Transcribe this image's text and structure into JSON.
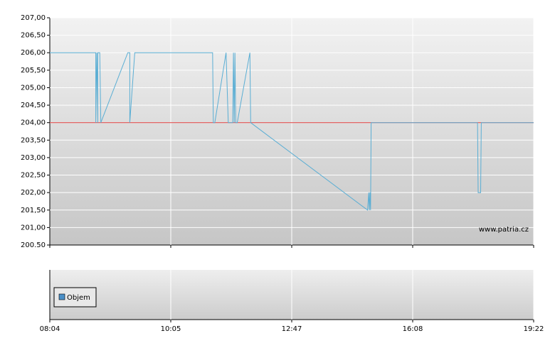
{
  "chart_data": [
    {
      "type": "line",
      "ylim": [
        200.5,
        207
      ],
      "yticks": [
        {
          "value": 200.5,
          "label": "200.50"
        },
        {
          "value": 201,
          "label": "201,00"
        },
        {
          "value": 201.5,
          "label": "201,50"
        },
        {
          "value": 202,
          "label": "202,00"
        },
        {
          "value": 202.5,
          "label": "202,50"
        },
        {
          "value": 203,
          "label": "203,00"
        },
        {
          "value": 203.5,
          "label": "203,50"
        },
        {
          "value": 204,
          "label": "204,00"
        },
        {
          "value": 204.5,
          "label": "204,50"
        },
        {
          "value": 205,
          "label": "205,00"
        },
        {
          "value": 205.5,
          "label": "205,50"
        },
        {
          "value": 206,
          "label": "206,00"
        },
        {
          "value": 206.5,
          "label": "206,50"
        },
        {
          "value": 207,
          "label": "207,00"
        }
      ],
      "grid": true,
      "reference": 204,
      "reference_color": "#e05050",
      "watermark": "www.patria.cz",
      "x": [
        484,
        530,
        530,
        531,
        532,
        532,
        534,
        535,
        562,
        564,
        564,
        569,
        661,
        662,
        664,
        679,
        682,
        688,
        689,
        690,
        691,
        692,
        694,
        711,
        712,
        893,
        895,
        896,
        897,
        898,
        899,
        1072,
        1073,
        1077,
        1078,
        1162
      ],
      "series": [
        {
          "color": "#5aaed4",
          "values": [
            206,
            206,
            204,
            206,
            204,
            206,
            206,
            204,
            206,
            206,
            204,
            206,
            206,
            204,
            204,
            206,
            204,
            204,
            206,
            204,
            206,
            204,
            204,
            206,
            204,
            201.5,
            202,
            201.5,
            202,
            201.5,
            204,
            204,
            202,
            202,
            204,
            204
          ]
        }
      ]
    },
    {
      "type": "bar",
      "xticks": [
        {
          "value": 484,
          "label": "08:04"
        },
        {
          "value": 605,
          "label": "10:05"
        },
        {
          "value": 767,
          "label": "12:47"
        },
        {
          "value": 968,
          "label": "16:08"
        },
        {
          "value": 1162,
          "label": "19:22"
        }
      ],
      "grid": true,
      "series": [
        {
          "name": "Objem",
          "color": "#4a90c8",
          "values": []
        }
      ]
    }
  ]
}
